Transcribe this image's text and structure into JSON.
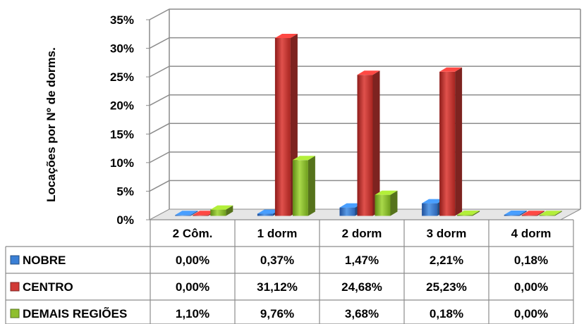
{
  "chart_data": {
    "type": "bar",
    "ylabel": "Locações por Nº de dorms.",
    "ylim": [
      0,
      35
    ],
    "ytick_labels": [
      "0%",
      "5%",
      "10%",
      "15%",
      "20%",
      "25%",
      "30%",
      "35%"
    ],
    "categories": [
      "2 Côm.",
      "1 dorm",
      "2 dorm",
      "3 dorm",
      "4 dorm"
    ],
    "series": [
      {
        "name": "NOBRE",
        "values": [
          0.0,
          0.37,
          1.47,
          2.21,
          0.18
        ],
        "labels": [
          "0,00%",
          "0,37%",
          "1,47%",
          "2,21%",
          "0,18%"
        ],
        "color": "#3a7fd5"
      },
      {
        "name": "CENTRO",
        "values": [
          0.0,
          31.12,
          24.68,
          25.23,
          0.0
        ],
        "labels": [
          "0,00%",
          "31,12%",
          "24,68%",
          "25,23%",
          "0,00%"
        ],
        "color": "#d13a36"
      },
      {
        "name": "DEMAIS REGIÕES",
        "values": [
          1.1,
          9.76,
          3.68,
          0.18,
          0.0
        ],
        "labels": [
          "1,10%",
          "9,76%",
          "3,68%",
          "0,18%",
          "0,00%"
        ],
        "color": "#8fbf2e"
      }
    ],
    "grid": true,
    "legend": "data-table"
  }
}
